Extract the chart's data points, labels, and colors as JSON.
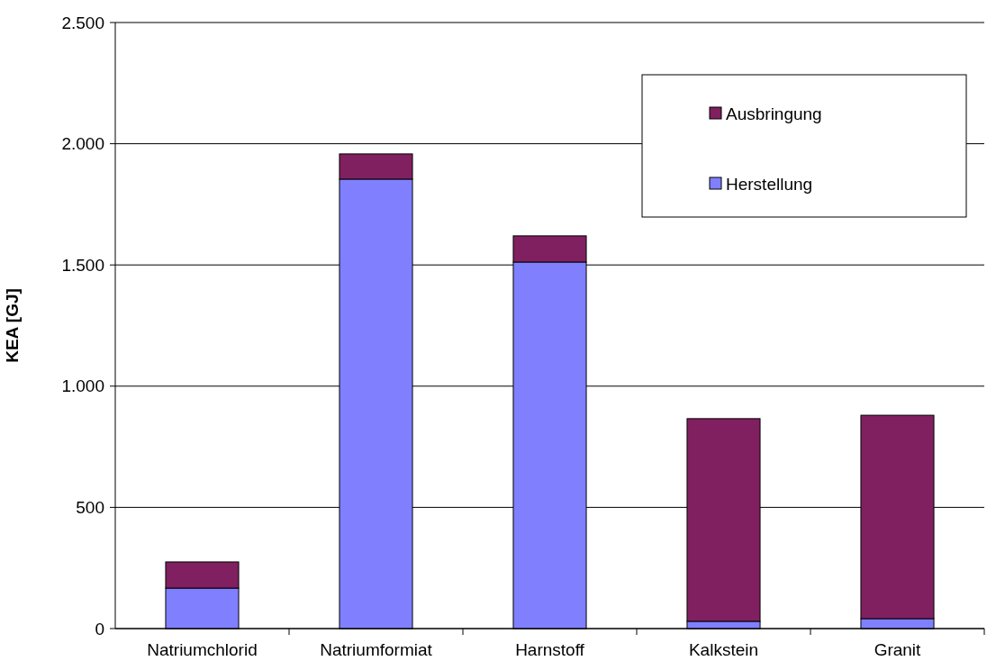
{
  "chart_data": {
    "type": "bar",
    "ylabel": "KEA [GJ]",
    "stacked": true,
    "categories": [
      "Natriumchlorid",
      "Natriumformiat",
      "Harnstoff",
      "Kalkstein",
      "Granit"
    ],
    "series": [
      {
        "name": "Herstellung",
        "color": "#8080ff",
        "values": [
          167,
          1854,
          1512,
          30,
          41
        ]
      },
      {
        "name": "Ausbringung",
        "color": "#802060",
        "values": [
          108,
          104,
          108,
          836,
          839
        ]
      }
    ],
    "ylim": [
      0,
      2500
    ],
    "yticks": [
      {
        "value": 0,
        "label": "0"
      },
      {
        "value": 500,
        "label": "500"
      },
      {
        "value": 1000,
        "label": "1.000"
      },
      {
        "value": 1500,
        "label": "1.500"
      },
      {
        "value": 2000,
        "label": "2.000"
      },
      {
        "value": 2500,
        "label": "2.500"
      }
    ],
    "grid": "y",
    "legend": "top right"
  }
}
